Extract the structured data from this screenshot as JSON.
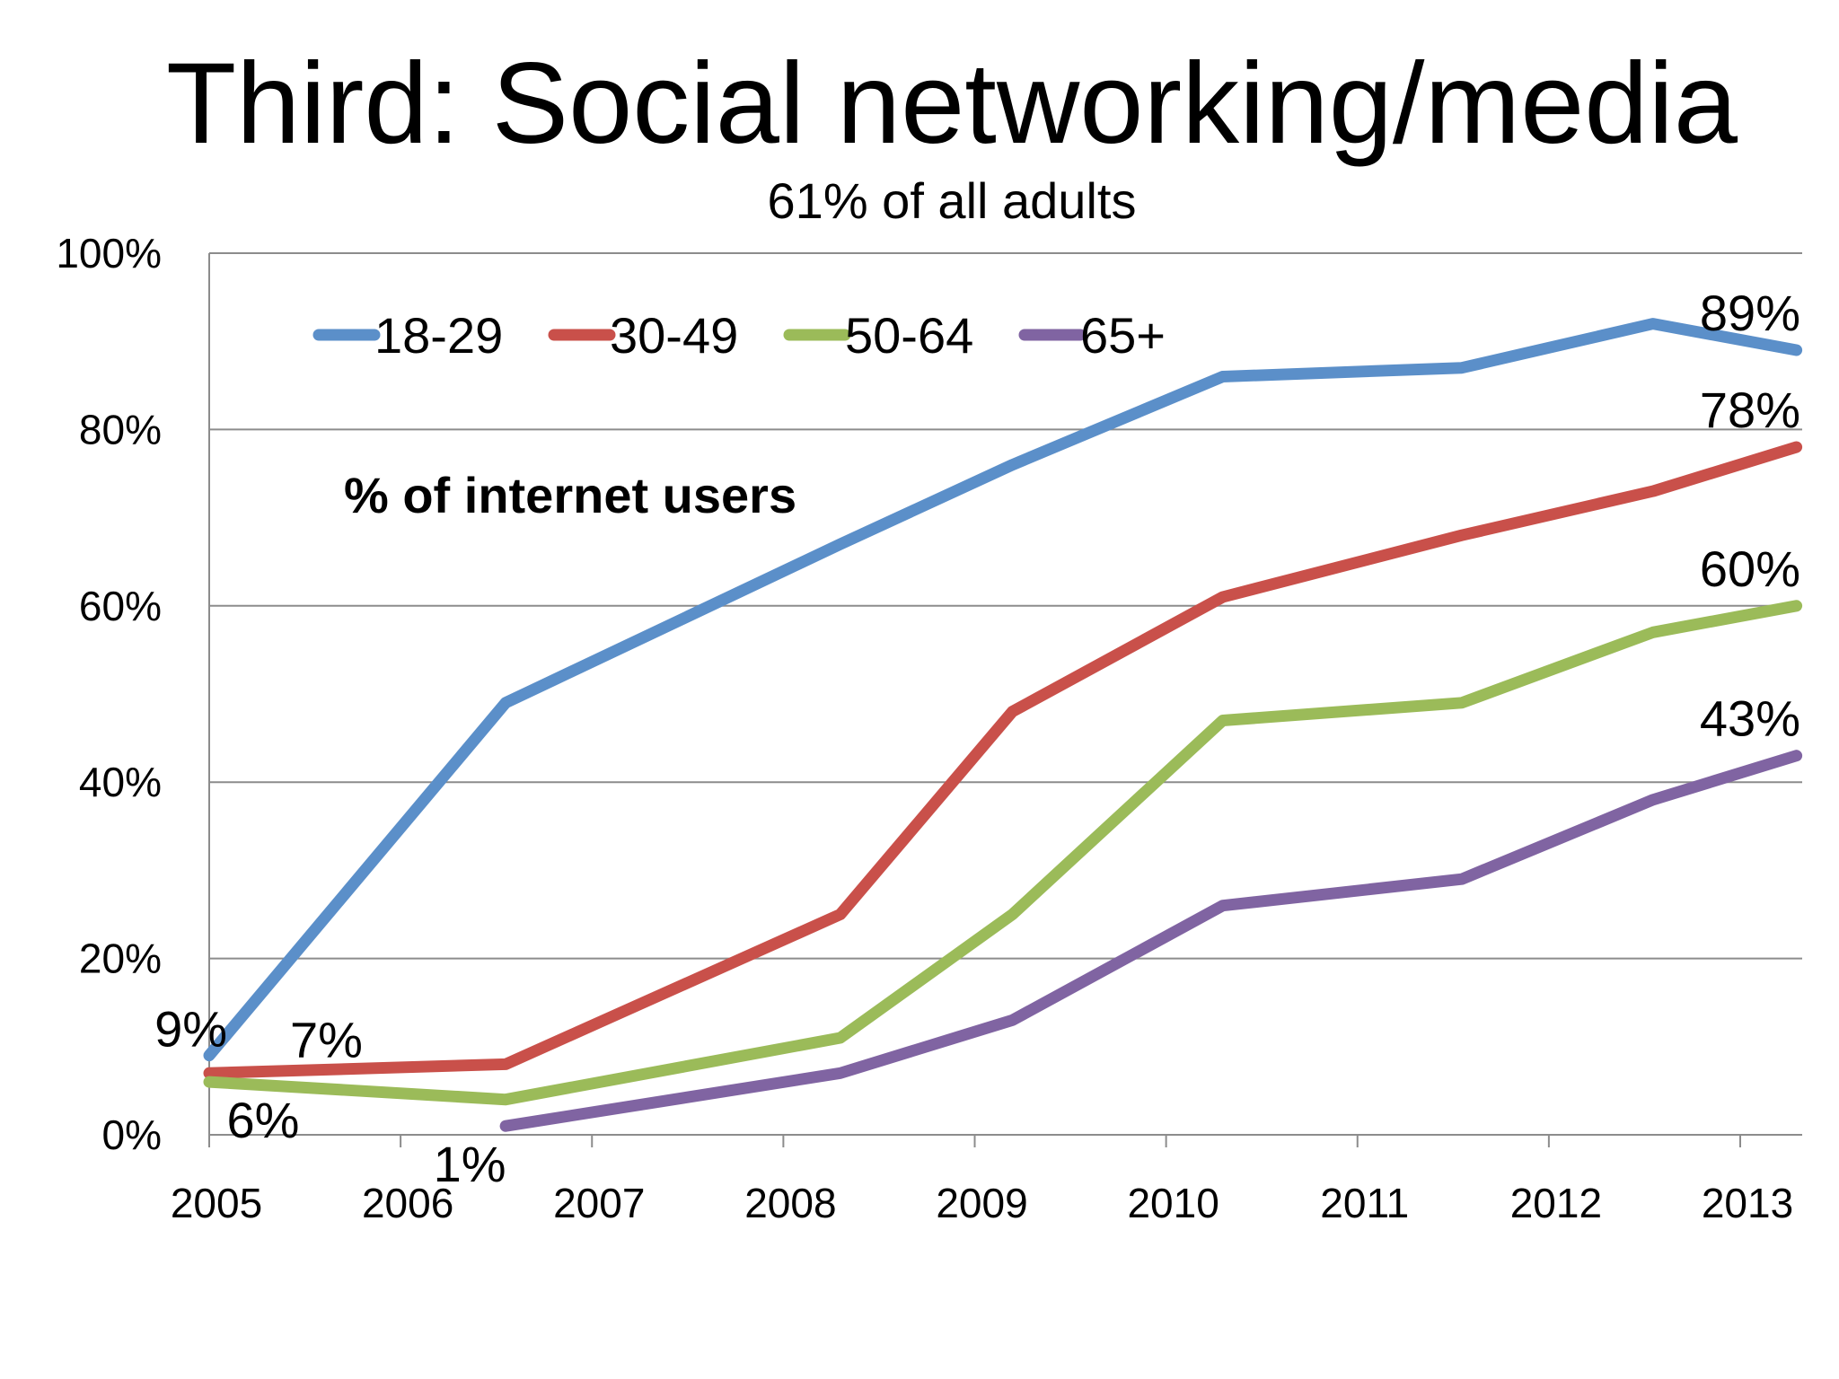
{
  "slide": {
    "title": "Third: Social networking/media",
    "subtitle": "61% of all adults"
  },
  "chart_data": {
    "type": "line",
    "title": "",
    "xlabel": "",
    "ylabel": "",
    "annotation": "% of internet users",
    "x_tick_labels": [
      "2005",
      "2006",
      "2007",
      "2008",
      "2009",
      "2010",
      "2011",
      "2012",
      "2013"
    ],
    "y_tick_labels": [
      "0%",
      "20%",
      "40%",
      "60%",
      "80%",
      "100%"
    ],
    "ylim": [
      0,
      100
    ],
    "xlim": [
      2005,
      2013.33
    ],
    "grid": true,
    "legend_position": "top-left",
    "series": [
      {
        "name": "18-29",
        "color": "#5b8fc9",
        "points": [
          [
            2005.0,
            9
          ],
          [
            2006.55,
            49
          ],
          [
            2008.3,
            67
          ],
          [
            2009.2,
            76
          ],
          [
            2010.3,
            86
          ],
          [
            2011.55,
            87
          ],
          [
            2012.55,
            92
          ],
          [
            2013.3,
            89
          ]
        ]
      },
      {
        "name": "30-49",
        "color": "#c9504a",
        "points": [
          [
            2005.0,
            7
          ],
          [
            2006.55,
            8
          ],
          [
            2008.3,
            25
          ],
          [
            2009.2,
            48
          ],
          [
            2010.3,
            61
          ],
          [
            2011.55,
            68
          ],
          [
            2012.55,
            73
          ],
          [
            2013.3,
            78
          ]
        ]
      },
      {
        "name": "50-64",
        "color": "#9bbb59",
        "points": [
          [
            2005.0,
            6
          ],
          [
            2006.55,
            4
          ],
          [
            2008.3,
            11
          ],
          [
            2009.2,
            25
          ],
          [
            2010.3,
            47
          ],
          [
            2011.55,
            49
          ],
          [
            2012.55,
            57
          ],
          [
            2013.3,
            60
          ]
        ]
      },
      {
        "name": "65+",
        "color": "#8064a2",
        "points": [
          [
            2006.55,
            1
          ],
          [
            2008.3,
            7
          ],
          [
            2009.2,
            13
          ],
          [
            2010.3,
            26
          ],
          [
            2011.55,
            29
          ],
          [
            2012.55,
            38
          ],
          [
            2013.3,
            43
          ]
        ]
      }
    ],
    "data_labels": [
      {
        "text": "9%",
        "x": 2005.0,
        "y": 9,
        "series": "18-29",
        "pos": "left"
      },
      {
        "text": "7%",
        "x": 2005.0,
        "y": 7,
        "series": "30-49",
        "pos": "right"
      },
      {
        "text": "6%",
        "x": 2005.0,
        "y": 6,
        "series": "50-64",
        "pos": "below"
      },
      {
        "text": "1%",
        "x": 2006.55,
        "y": 1,
        "series": "65+",
        "pos": "below-left"
      },
      {
        "text": "89%",
        "x": 2013.3,
        "y": 89,
        "series": "18-29",
        "pos": "above"
      },
      {
        "text": "78%",
        "x": 2013.3,
        "y": 78,
        "series": "30-49",
        "pos": "above"
      },
      {
        "text": "60%",
        "x": 2013.3,
        "y": 60,
        "series": "50-64",
        "pos": "above"
      },
      {
        "text": "43%",
        "x": 2013.3,
        "y": 43,
        "series": "65+",
        "pos": "above"
      }
    ]
  }
}
